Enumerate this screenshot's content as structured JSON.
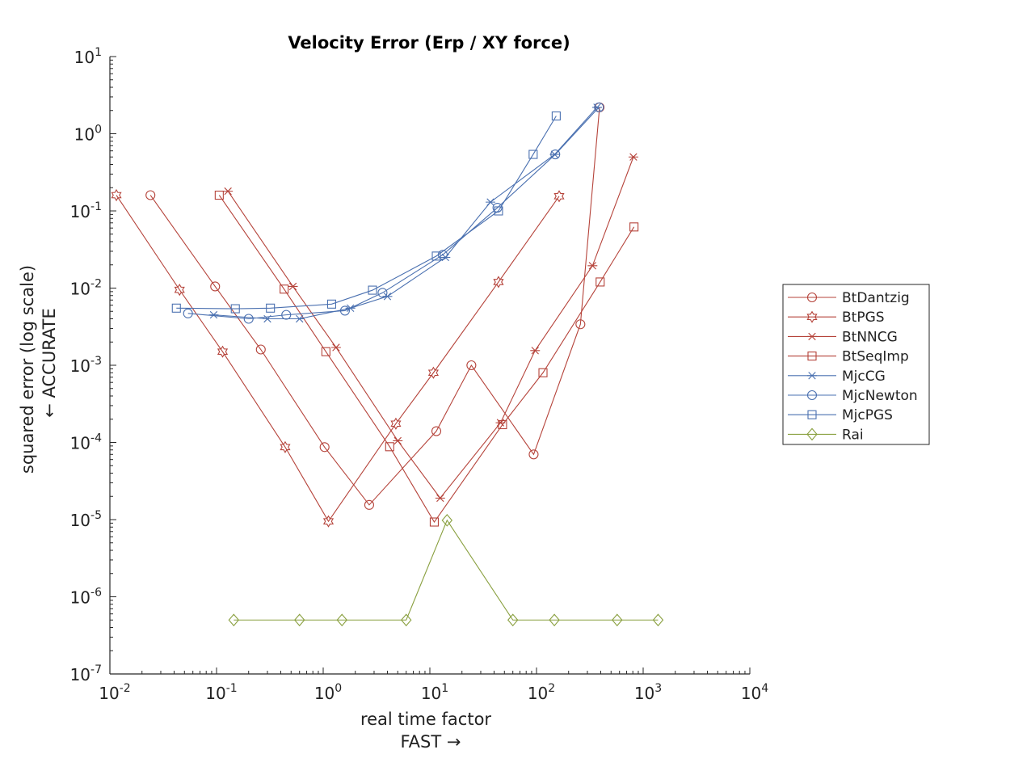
{
  "chart_data": {
    "type": "line",
    "title": "Velocity Error (Erp / XY force)",
    "xlabel": "real time factor",
    "xlabel_sub": "FAST →",
    "ylabel": "squared error (log scale)",
    "ylabel_sub": "← ACCURATE",
    "xscale": "log",
    "yscale": "log",
    "xlim": [
      0.01,
      10000
    ],
    "ylim": [
      1e-07,
      10
    ],
    "x_ticks": [
      {
        "value": 0.01,
        "base": "10",
        "exp": "-2"
      },
      {
        "value": 0.1,
        "base": "10",
        "exp": "-1"
      },
      {
        "value": 1,
        "base": "10",
        "exp": "0"
      },
      {
        "value": 10,
        "base": "10",
        "exp": "1"
      },
      {
        "value": 100,
        "base": "10",
        "exp": "2"
      },
      {
        "value": 1000,
        "base": "10",
        "exp": "3"
      },
      {
        "value": 10000,
        "base": "10",
        "exp": "4"
      }
    ],
    "y_ticks": [
      {
        "value": 1e-07,
        "base": "10",
        "exp": "-7"
      },
      {
        "value": 1e-06,
        "base": "10",
        "exp": "-6"
      },
      {
        "value": 1e-05,
        "base": "10",
        "exp": "-5"
      },
      {
        "value": 0.0001,
        "base": "10",
        "exp": "-4"
      },
      {
        "value": 0.001,
        "base": "10",
        "exp": "-3"
      },
      {
        "value": 0.01,
        "base": "10",
        "exp": "-2"
      },
      {
        "value": 0.1,
        "base": "10",
        "exp": "-1"
      },
      {
        "value": 1,
        "base": "10",
        "exp": "0"
      },
      {
        "value": 10,
        "base": "10",
        "exp": "1"
      }
    ],
    "grid": false,
    "legend_position": "right",
    "series": [
      {
        "name": "BtDantzig",
        "color": "#b5433a",
        "marker": "circle",
        "x": [
          0.024,
          0.097,
          0.26,
          1.03,
          2.7,
          11.5,
          24.5,
          94,
          258,
          390
        ],
        "y": [
          0.16,
          0.0105,
          0.0016,
          8.7e-05,
          1.55e-05,
          0.00014,
          0.001,
          7e-05,
          0.0034,
          2.2
        ]
      },
      {
        "name": "BtPGS",
        "color": "#b5433a",
        "marker": "hexagram",
        "x": [
          0.0115,
          0.045,
          0.114,
          0.44,
          1.12,
          4.8,
          10.8,
          44,
          163
        ],
        "y": [
          0.16,
          0.0095,
          0.0015,
          8.7e-05,
          9.5e-06,
          0.000175,
          0.0008,
          0.012,
          0.155
        ]
      },
      {
        "name": "BtNNCG",
        "color": "#b5433a",
        "marker": "asterisk",
        "x": [
          0.128,
          0.52,
          1.32,
          5,
          12.5,
          46,
          97,
          335,
          810
        ],
        "y": [
          0.18,
          0.0105,
          0.0017,
          0.000105,
          1.9e-05,
          0.00018,
          0.00155,
          0.0195,
          0.5
        ]
      },
      {
        "name": "BtSeqImp",
        "color": "#b5433a",
        "marker": "square",
        "x": [
          0.106,
          0.43,
          1.06,
          4.2,
          11,
          48,
          115,
          395,
          820
        ],
        "y": [
          0.16,
          0.0097,
          0.0015,
          8.8e-05,
          9.3e-06,
          0.00017,
          0.0008,
          0.012,
          0.062
        ]
      },
      {
        "name": "MjcCG",
        "color": "#4a70b0",
        "marker": "asterisk",
        "x": [
          0.094,
          0.3,
          0.6,
          1.8,
          4,
          14,
          37,
          148,
          370
        ],
        "y": [
          0.0045,
          0.004,
          0.004,
          0.0055,
          0.0078,
          0.025,
          0.13,
          0.54,
          2.2
        ]
      },
      {
        "name": "MjcNewton",
        "color": "#4a70b0",
        "marker": "circle",
        "x": [
          0.054,
          0.2,
          0.45,
          1.6,
          3.6,
          13.2,
          43,
          150,
          385
        ],
        "y": [
          0.0047,
          0.004,
          0.0045,
          0.0051,
          0.0087,
          0.027,
          0.11,
          0.54,
          2.2
        ]
      },
      {
        "name": "MjcPGS",
        "color": "#4a70b0",
        "marker": "square",
        "x": [
          0.042,
          0.15,
          0.32,
          1.2,
          2.9,
          11.5,
          44,
          93,
          153
        ],
        "y": [
          0.0055,
          0.0054,
          0.0055,
          0.0062,
          0.0094,
          0.026,
          0.1,
          0.54,
          1.7
        ]
      },
      {
        "name": "Rai",
        "color": "#8aa040",
        "marker": "diamond",
        "x": [
          0.145,
          0.6,
          1.5,
          6,
          14.5,
          60,
          147,
          570,
          1380
        ],
        "y": [
          5e-07,
          5e-07,
          5e-07,
          5e-07,
          9.8e-06,
          5e-07,
          5e-07,
          5e-07,
          5e-07
        ]
      }
    ]
  }
}
